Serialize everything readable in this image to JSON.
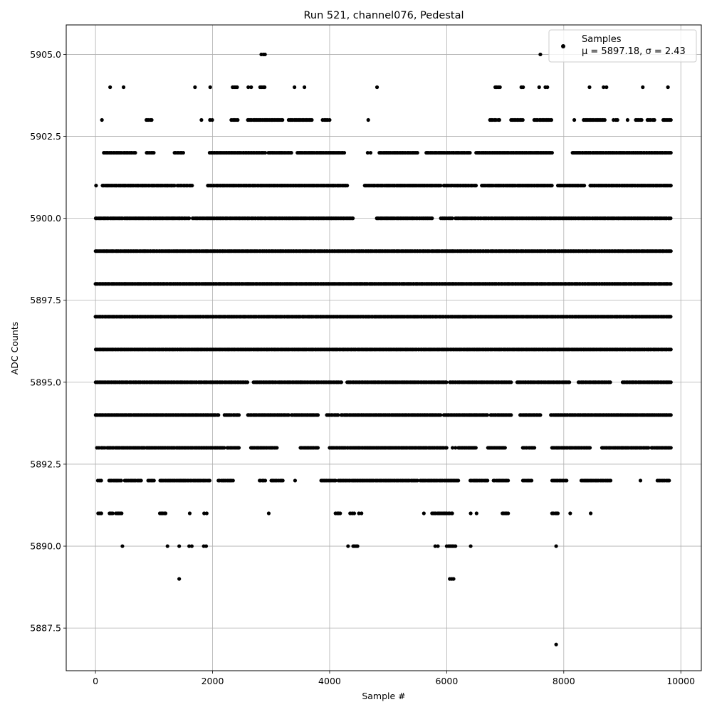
{
  "chart_data": {
    "type": "scatter",
    "title": "Run 521, channel076, Pedestal",
    "xlabel": "Sample #",
    "ylabel": "ADC Counts",
    "xlim": [
      -500,
      10350
    ],
    "ylim": [
      5886.2,
      5905.9
    ],
    "xticks": [
      0,
      2000,
      4000,
      6000,
      8000,
      10000
    ],
    "xtick_labels": [
      "0",
      "2000",
      "4000",
      "6000",
      "8000",
      "10000"
    ],
    "yticks": [
      5887.5,
      5890.0,
      5892.5,
      5895.0,
      5897.5,
      5900.0,
      5902.5,
      5905.0
    ],
    "ytick_labels": [
      "5887.5",
      "5890.0",
      "5892.5",
      "5895.0",
      "5897.5",
      "5900.0",
      "5902.5",
      "5905.0"
    ],
    "grid": true,
    "legend": {
      "position": "top-right",
      "line1": "Samples",
      "line2": "μ = 5897.18, σ = 2.43"
    },
    "marker_color": "#000000",
    "n_samples": 9830,
    "mean": 5897.18,
    "sigma": 2.43,
    "levels": [
      {
        "y": 5905,
        "ranges": [
          [
            2830,
            2900
          ],
          [
            7590,
            7610
          ]
        ]
      },
      {
        "y": 5904,
        "ranges": [
          [
            240,
            260
          ],
          [
            470,
            490
          ],
          [
            1690,
            1710
          ],
          [
            1950,
            1970
          ],
          [
            2340,
            2420
          ],
          [
            2610,
            2660
          ],
          [
            2810,
            2890
          ],
          [
            3390,
            3410
          ],
          [
            3560,
            3580
          ],
          [
            4800,
            4820
          ],
          [
            6830,
            6910
          ],
          [
            7270,
            7310
          ],
          [
            7570,
            7590
          ],
          [
            7680,
            7720
          ],
          [
            8430,
            8450
          ],
          [
            8680,
            8730
          ],
          [
            9340,
            9360
          ],
          [
            9770,
            9790
          ]
        ]
      },
      {
        "y": 5903,
        "ranges": [
          [
            100,
            120
          ],
          [
            870,
            960
          ],
          [
            1800,
            1820
          ],
          [
            1950,
            2000
          ],
          [
            2320,
            2430
          ],
          [
            2600,
            3200
          ],
          [
            3300,
            3700
          ],
          [
            3880,
            4000
          ],
          [
            4650,
            4670
          ],
          [
            6740,
            6900
          ],
          [
            7100,
            7300
          ],
          [
            7490,
            7790
          ],
          [
            8170,
            8190
          ],
          [
            8340,
            8700
          ],
          [
            8850,
            8920
          ],
          [
            9080,
            9100
          ],
          [
            9230,
            9330
          ],
          [
            9430,
            9550
          ],
          [
            9700,
            9830
          ]
        ]
      },
      {
        "y": 5902,
        "ranges": [
          [
            140,
            450
          ],
          [
            480,
            680
          ],
          [
            870,
            1000
          ],
          [
            1350,
            1500
          ],
          [
            1950,
            2900
          ],
          [
            2950,
            3350
          ],
          [
            3450,
            4250
          ],
          [
            4650,
            4700
          ],
          [
            4850,
            5500
          ],
          [
            5650,
            6400
          ],
          [
            6500,
            7800
          ],
          [
            8150,
            9830
          ]
        ]
      },
      {
        "y": 5901,
        "ranges": [
          [
            0,
            20
          ],
          [
            120,
            1350
          ],
          [
            1400,
            1650
          ],
          [
            1920,
            4300
          ],
          [
            4600,
            5900
          ],
          [
            5950,
            6500
          ],
          [
            6600,
            7800
          ],
          [
            7900,
            8350
          ],
          [
            8450,
            9830
          ]
        ]
      },
      {
        "y": 5900,
        "ranges": [
          [
            0,
            1600
          ],
          [
            1660,
            4400
          ],
          [
            4800,
            5750
          ],
          [
            5900,
            6100
          ],
          [
            6150,
            9830
          ]
        ]
      },
      {
        "y": 5899,
        "ranges": [
          [
            0,
            9830
          ]
        ]
      },
      {
        "y": 5898,
        "ranges": [
          [
            0,
            9830
          ]
        ]
      },
      {
        "y": 5897,
        "ranges": [
          [
            0,
            9830
          ]
        ]
      },
      {
        "y": 5896,
        "ranges": [
          [
            0,
            9830
          ]
        ]
      },
      {
        "y": 5895,
        "ranges": [
          [
            0,
            2600
          ],
          [
            2700,
            3500
          ],
          [
            3500,
            4200
          ],
          [
            4300,
            6000
          ],
          [
            6050,
            7100
          ],
          [
            7200,
            8100
          ],
          [
            8250,
            8800
          ],
          [
            9000,
            9830
          ]
        ]
      },
      {
        "y": 5894,
        "ranges": [
          [
            0,
            2100
          ],
          [
            2200,
            2450
          ],
          [
            2600,
            3300
          ],
          [
            3350,
            3800
          ],
          [
            3950,
            4150
          ],
          [
            4200,
            5900
          ],
          [
            5950,
            6700
          ],
          [
            6750,
            7100
          ],
          [
            7250,
            7600
          ],
          [
            7780,
            9830
          ]
        ]
      },
      {
        "y": 5893,
        "ranges": [
          [
            20,
            60
          ],
          [
            100,
            160
          ],
          [
            200,
            2200
          ],
          [
            2250,
            2450
          ],
          [
            2650,
            3100
          ],
          [
            3500,
            3800
          ],
          [
            4000,
            4500
          ],
          [
            4500,
            6000
          ],
          [
            6100,
            6150
          ],
          [
            6200,
            6500
          ],
          [
            6700,
            7000
          ],
          [
            7300,
            7500
          ],
          [
            7800,
            8450
          ],
          [
            8650,
            9000
          ],
          [
            9000,
            9450
          ],
          [
            9500,
            9830
          ]
        ]
      },
      {
        "y": 5892,
        "ranges": [
          [
            40,
            100
          ],
          [
            230,
            440
          ],
          [
            500,
            780
          ],
          [
            900,
            1000
          ],
          [
            1100,
            1500
          ],
          [
            1500,
            1950
          ],
          [
            2100,
            2350
          ],
          [
            2800,
            2900
          ],
          [
            3000,
            3200
          ],
          [
            3400,
            3420
          ],
          [
            3850,
            4100
          ],
          [
            4150,
            5500
          ],
          [
            5550,
            6200
          ],
          [
            6400,
            6700
          ],
          [
            6800,
            7050
          ],
          [
            7300,
            7450
          ],
          [
            7800,
            8050
          ],
          [
            8300,
            8800
          ],
          [
            9300,
            9320
          ],
          [
            9600,
            9800
          ]
        ]
      },
      {
        "y": 5891,
        "ranges": [
          [
            40,
            100
          ],
          [
            240,
            300
          ],
          [
            350,
            450
          ],
          [
            1100,
            1200
          ],
          [
            1600,
            1620
          ],
          [
            1850,
            1900
          ],
          [
            2950,
            2970
          ],
          [
            4100,
            4180
          ],
          [
            4350,
            4420
          ],
          [
            4500,
            4550
          ],
          [
            5600,
            5620
          ],
          [
            5750,
            6100
          ],
          [
            6400,
            6420
          ],
          [
            6500,
            6520
          ],
          [
            6950,
            7050
          ],
          [
            7800,
            7900
          ],
          [
            8100,
            8120
          ],
          [
            8450,
            8470
          ]
        ]
      },
      {
        "y": 5890,
        "ranges": [
          [
            450,
            470
          ],
          [
            1220,
            1240
          ],
          [
            1420,
            1440
          ],
          [
            1600,
            1650
          ],
          [
            1850,
            1890
          ],
          [
            4300,
            4330
          ],
          [
            4400,
            4480
          ],
          [
            5800,
            5850
          ],
          [
            6000,
            6150
          ],
          [
            6400,
            6420
          ],
          [
            7860,
            7880
          ]
        ]
      },
      {
        "y": 5889,
        "ranges": [
          [
            1420,
            1440
          ],
          [
            6050,
            6120
          ]
        ]
      },
      {
        "y": 5887,
        "ranges": [
          [
            7860,
            7880
          ]
        ]
      }
    ]
  }
}
